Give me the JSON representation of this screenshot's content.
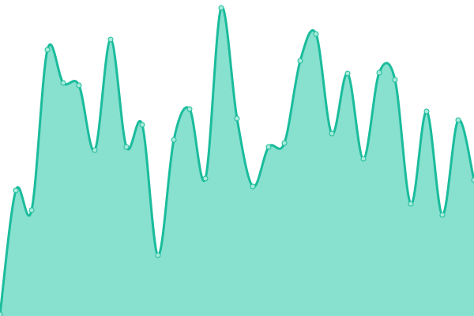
{
  "chart_data": {
    "type": "area",
    "title": "",
    "xlabel": "",
    "ylabel": "",
    "x": [
      0,
      1,
      2,
      3,
      4,
      5,
      6,
      7,
      8,
      9,
      10,
      11,
      12,
      13,
      14,
      15,
      16,
      17,
      18,
      19,
      20,
      21,
      22,
      23,
      24,
      25,
      26,
      27,
      28,
      29,
      30
    ],
    "values": [
      2,
      159,
      134,
      337,
      295,
      292,
      210,
      350,
      214,
      242,
      77,
      223,
      262,
      174,
      390,
      250,
      164,
      214,
      219,
      323,
      357,
      231,
      307,
      199,
      308,
      299,
      142,
      259,
      128,
      248,
      172
    ],
    "ylim": [
      0,
      400
    ],
    "xlim": [
      0,
      30
    ],
    "grid": false,
    "axes_visible": false,
    "curve": "smooth",
    "markers": true,
    "colors": {
      "line": "#1abc9c",
      "fill": "#88e0cf",
      "marker_fill": "#a8ead9",
      "marker_stroke": "#1abc9c"
    }
  }
}
